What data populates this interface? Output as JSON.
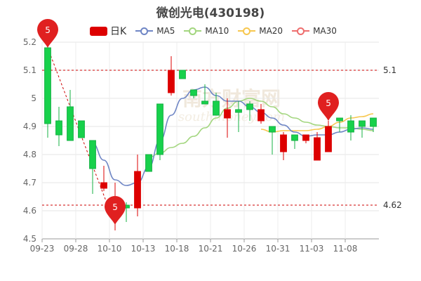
{
  "title": "微创光电(430198)",
  "legend": [
    {
      "label": "日K",
      "type": "candle",
      "color": "#dd0000"
    },
    {
      "label": "MA5",
      "type": "line",
      "color": "#6f86c5"
    },
    {
      "label": "MA10",
      "type": "line",
      "color": "#a3d67f"
    },
    {
      "label": "MA20",
      "type": "line",
      "color": "#f7c74f"
    },
    {
      "label": "MA30",
      "type": "line",
      "color": "#ee6e6e"
    }
  ],
  "watermark": "南方财富网",
  "watermark_sub": "southmoney.com",
  "chart_data": {
    "type": "candlestick",
    "title": "微创光电(430198)",
    "ylim": [
      4.5,
      5.2
    ],
    "y_ticks": [
      "5.2",
      "5.1",
      "5",
      "4.9",
      "4.8",
      "4.7",
      "4.6",
      "4.5"
    ],
    "x_tick_labels": [
      "09-23",
      "09-28",
      "10-10",
      "10-13",
      "10-18",
      "10-21",
      "10-26",
      "10-31",
      "11-03",
      "11-08"
    ],
    "x_tick_indices": [
      0,
      3,
      6,
      9,
      12,
      15,
      18,
      21,
      24,
      27
    ],
    "candles": [
      {
        "open": 4.91,
        "close": 5.18,
        "low": 4.86,
        "high": 5.19
      },
      {
        "open": 4.87,
        "close": 4.92,
        "low": 4.83,
        "high": 4.97
      },
      {
        "open": 4.85,
        "close": 4.97,
        "low": 4.85,
        "high": 5.03
      },
      {
        "open": 4.86,
        "close": 4.92,
        "low": 4.86,
        "high": 4.92
      },
      {
        "open": 4.75,
        "close": 4.85,
        "low": 4.66,
        "high": 4.85
      },
      {
        "open": 4.7,
        "close": 4.68,
        "low": 4.67,
        "high": 4.76
      },
      {
        "open": 4.6,
        "close": 4.57,
        "low": 4.53,
        "high": 4.7
      },
      {
        "open": 4.61,
        "close": 4.62,
        "low": 4.56,
        "high": 4.63
      },
      {
        "open": 4.74,
        "close": 4.61,
        "low": 4.58,
        "high": 4.8
      },
      {
        "open": 4.74,
        "close": 4.8,
        "low": 4.74,
        "high": 4.8
      },
      {
        "open": 4.8,
        "close": 4.98,
        "low": 4.78,
        "high": 4.98
      },
      {
        "open": 5.1,
        "close": 5.02,
        "low": 5.01,
        "high": 5.15
      },
      {
        "open": 5.07,
        "close": 5.1,
        "low": 5.07,
        "high": 5.1
      },
      {
        "open": 5.01,
        "close": 5.03,
        "low": 5.0,
        "high": 5.03
      },
      {
        "open": 4.98,
        "close": 4.99,
        "low": 4.98,
        "high": 5.05
      },
      {
        "open": 4.94,
        "close": 4.99,
        "low": 4.94,
        "high": 5.02
      },
      {
        "open": 4.96,
        "close": 4.93,
        "low": 4.86,
        "high": 5.0
      },
      {
        "open": 4.95,
        "close": 4.96,
        "low": 4.88,
        "high": 4.99
      },
      {
        "open": 4.96,
        "close": 4.98,
        "low": 4.92,
        "high": 4.99
      },
      {
        "open": 4.96,
        "close": 4.92,
        "low": 4.91,
        "high": 4.98
      },
      {
        "open": 4.88,
        "close": 4.9,
        "low": 4.8,
        "high": 4.9
      },
      {
        "open": 4.87,
        "close": 4.81,
        "low": 4.78,
        "high": 4.88
      },
      {
        "open": 4.85,
        "close": 4.87,
        "low": 4.82,
        "high": 4.87
      },
      {
        "open": 4.87,
        "close": 4.85,
        "low": 4.84,
        "high": 4.87
      },
      {
        "open": 4.86,
        "close": 4.78,
        "low": 4.78,
        "high": 4.88
      },
      {
        "open": 4.9,
        "close": 4.81,
        "low": 4.81,
        "high": 4.92
      },
      {
        "open": 4.92,
        "close": 4.93,
        "low": 4.88,
        "high": 4.93
      },
      {
        "open": 4.88,
        "close": 4.92,
        "low": 4.85,
        "high": 4.94
      },
      {
        "open": 4.9,
        "close": 4.92,
        "low": 4.86,
        "high": 4.92
      },
      {
        "open": 4.9,
        "close": 4.93,
        "low": 4.88,
        "high": 4.93
      }
    ],
    "ma5": [
      null,
      null,
      null,
      null,
      4.84,
      4.78,
      4.71,
      4.69,
      4.7,
      4.755,
      4.85,
      4.94,
      5.0,
      5.03,
      5.04,
      5.01,
      4.99,
      4.99,
      4.97,
      4.95,
      4.93,
      4.905,
      4.88,
      4.865,
      4.87,
      4.87,
      4.88,
      4.89,
      4.895,
      4.89
    ],
    "ma10": [
      null,
      null,
      null,
      null,
      null,
      null,
      null,
      null,
      null,
      4.79,
      4.805,
      4.825,
      4.84,
      4.865,
      4.895,
      4.93,
      4.965,
      4.99,
      5.0,
      4.99,
      4.97,
      4.945,
      4.93,
      4.915,
      4.905,
      4.9,
      4.895,
      4.895,
      4.89,
      4.885
    ],
    "ma20": [
      null,
      null,
      null,
      null,
      null,
      null,
      null,
      null,
      null,
      null,
      null,
      null,
      null,
      null,
      null,
      null,
      null,
      null,
      null,
      4.89,
      4.88,
      4.885,
      4.885,
      4.885,
      4.89,
      4.9,
      4.915,
      4.93,
      4.935,
      4.945
    ],
    "ma30": [],
    "markers": [
      {
        "label": "5",
        "index": 0,
        "value": 5.18,
        "color": "#e02020"
      },
      {
        "label": "5",
        "index": 6,
        "value": 4.55,
        "color": "#e02020"
      },
      {
        "label": "5",
        "index": 25,
        "value": 4.92,
        "color": "#e02020"
      }
    ],
    "ref_lines": [
      {
        "label": "5.1",
        "value": 5.1
      },
      {
        "label": "4.62",
        "value": 4.62
      }
    ],
    "dashed_segment": {
      "from_index": 0,
      "from_value": 5.18,
      "to_index": 6,
      "to_value": 4.55
    }
  }
}
